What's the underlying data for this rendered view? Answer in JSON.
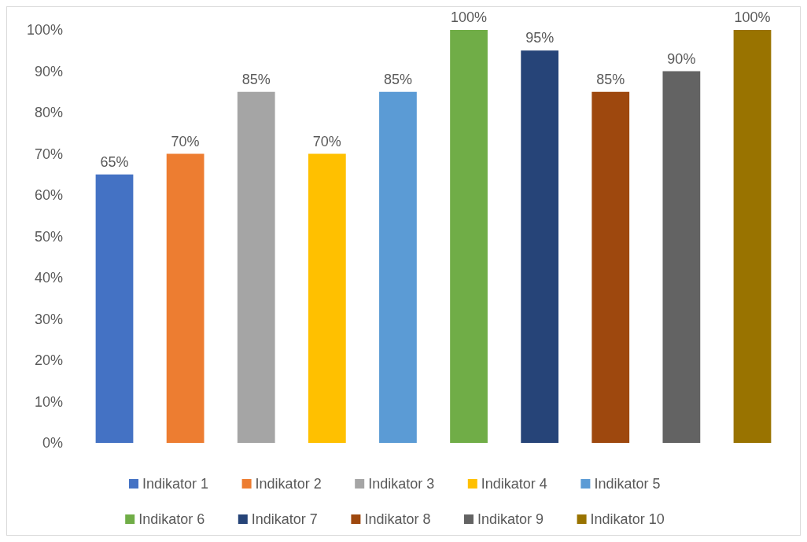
{
  "chart_data": {
    "type": "bar",
    "stacked": true,
    "categories": [
      null,
      null,
      null,
      null,
      null,
      null,
      null,
      null,
      null,
      null
    ],
    "series": [
      {
        "name": "Indikator 1",
        "color": "#4472c4",
        "values": [
          65,
          null,
          null,
          null,
          null,
          null,
          null,
          null,
          null,
          null
        ],
        "value_labels": [
          "65%",
          null,
          null,
          null,
          null,
          null,
          null,
          null,
          null,
          null
        ]
      },
      {
        "name": "Indikator 2",
        "color": "#ed7d31",
        "values": [
          null,
          70,
          null,
          null,
          null,
          null,
          null,
          null,
          null,
          null
        ],
        "value_labels": [
          null,
          "70%",
          null,
          null,
          null,
          null,
          null,
          null,
          null,
          null
        ]
      },
      {
        "name": "Indikator 3",
        "color": "#a5a5a5",
        "values": [
          null,
          null,
          85,
          null,
          null,
          null,
          null,
          null,
          null,
          null
        ],
        "value_labels": [
          null,
          null,
          "85%",
          null,
          null,
          null,
          null,
          null,
          null,
          null
        ]
      },
      {
        "name": "Indikator 4",
        "color": "#ffc000",
        "values": [
          null,
          null,
          null,
          70,
          null,
          null,
          null,
          null,
          null,
          null
        ],
        "value_labels": [
          null,
          null,
          null,
          "70%",
          null,
          null,
          null,
          null,
          null,
          null
        ]
      },
      {
        "name": "Indikator 5",
        "color": "#5b9bd5",
        "values": [
          null,
          null,
          null,
          null,
          85,
          null,
          null,
          null,
          null,
          null
        ],
        "value_labels": [
          null,
          null,
          null,
          null,
          "85%",
          null,
          null,
          null,
          null,
          null
        ]
      },
      {
        "name": "Indikator 6",
        "color": "#70ad47",
        "values": [
          null,
          null,
          null,
          null,
          null,
          100,
          null,
          null,
          null,
          null
        ],
        "value_labels": [
          null,
          null,
          null,
          null,
          null,
          "100%",
          null,
          null,
          null,
          null
        ]
      },
      {
        "name": "Indikator 7",
        "color": "#264478",
        "values": [
          null,
          null,
          null,
          null,
          null,
          null,
          95,
          null,
          null,
          null
        ],
        "value_labels": [
          null,
          null,
          null,
          null,
          null,
          null,
          "95%",
          null,
          null,
          null
        ]
      },
      {
        "name": "Indikator 8",
        "color": "#9e480e",
        "values": [
          null,
          null,
          null,
          null,
          null,
          null,
          null,
          85,
          null,
          null
        ],
        "value_labels": [
          null,
          null,
          null,
          null,
          null,
          null,
          null,
          "85%",
          null,
          null
        ]
      },
      {
        "name": "Indikator 9",
        "color": "#636363",
        "values": [
          null,
          null,
          null,
          null,
          null,
          null,
          null,
          null,
          90,
          null
        ],
        "value_labels": [
          null,
          null,
          null,
          null,
          null,
          null,
          null,
          null,
          "90%",
          null
        ]
      },
      {
        "name": "Indikator 10",
        "color": "#997300",
        "values": [
          null,
          null,
          null,
          null,
          null,
          null,
          null,
          null,
          null,
          100
        ],
        "value_labels": [
          null,
          null,
          null,
          null,
          null,
          null,
          null,
          null,
          null,
          "100%"
        ]
      }
    ],
    "ylim": [
      0,
      100
    ],
    "yticks": [
      {
        "value": 0,
        "label": "0%"
      },
      {
        "value": 10,
        "label": "10%"
      },
      {
        "value": 20,
        "label": "20%"
      },
      {
        "value": 30,
        "label": "30%"
      },
      {
        "value": 40,
        "label": "40%"
      },
      {
        "value": 50,
        "label": "50%"
      },
      {
        "value": 60,
        "label": "60%"
      },
      {
        "value": 70,
        "label": "70%"
      },
      {
        "value": 80,
        "label": "80%"
      },
      {
        "value": 90,
        "label": "90%"
      },
      {
        "value": 100,
        "label": "100%"
      }
    ],
    "legend": "bottom"
  }
}
